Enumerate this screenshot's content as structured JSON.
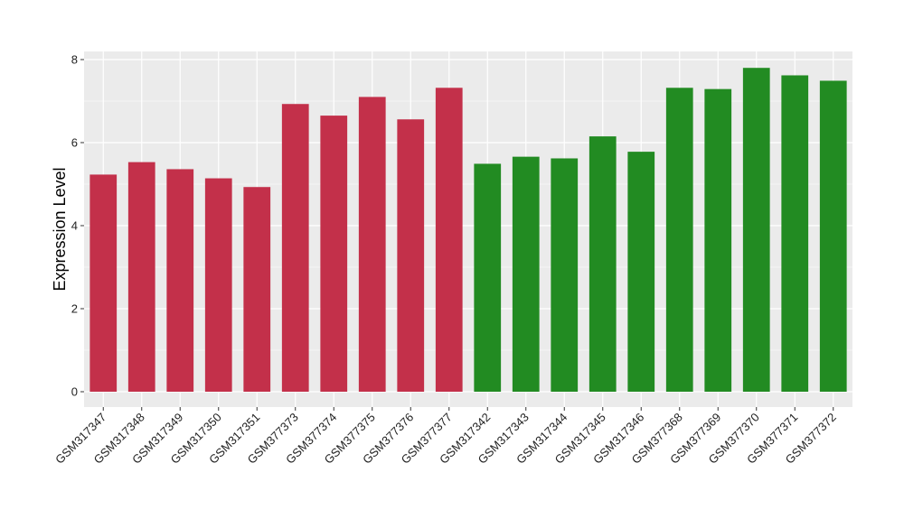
{
  "chart_data": {
    "type": "bar",
    "title": "",
    "xlabel": "",
    "ylabel": "Expression Level",
    "ylim": [
      0,
      8.2
    ],
    "yticks": [
      0,
      2,
      4,
      6,
      8
    ],
    "grid": true,
    "legend": "none",
    "categories": [
      "GSM317347",
      "GSM317348",
      "GSM317349",
      "GSM317350",
      "GSM317351",
      "GSM377373",
      "GSM377374",
      "GSM377375",
      "GSM377376",
      "GSM377377",
      "GSM317342",
      "GSM317343",
      "GSM317344",
      "GSM317345",
      "GSM317346",
      "GSM377368",
      "GSM377369",
      "GSM377370",
      "GSM377371",
      "GSM377372"
    ],
    "values": [
      5.23,
      5.53,
      5.36,
      5.14,
      4.93,
      6.93,
      6.65,
      7.1,
      6.56,
      7.32,
      5.49,
      5.66,
      5.62,
      6.15,
      5.78,
      7.32,
      7.29,
      7.8,
      7.62,
      7.49
    ],
    "groups": [
      "red",
      "red",
      "red",
      "red",
      "red",
      "red",
      "red",
      "red",
      "red",
      "red",
      "green",
      "green",
      "green",
      "green",
      "green",
      "green",
      "green",
      "green",
      "green",
      "green"
    ],
    "colors": {
      "red": "#c3304a",
      "green": "#228b22",
      "panel": "#ebebeb",
      "grid": "#ffffff"
    }
  }
}
